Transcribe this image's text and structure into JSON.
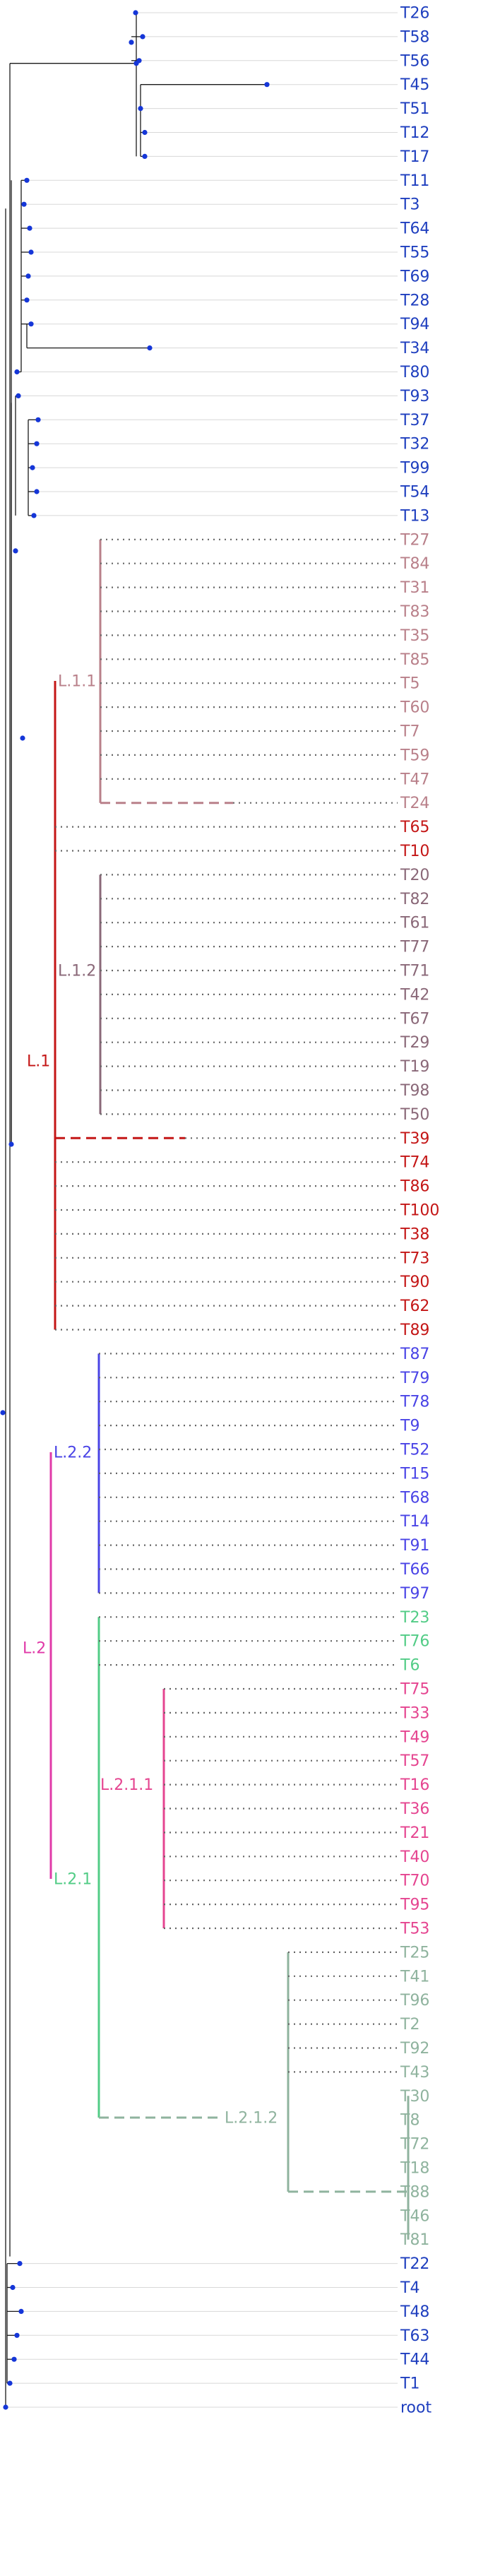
{
  "colors": {
    "top_tips": "#1f3fbf",
    "top_nodes": "#1536d8",
    "top_lines": "#1a1a1a",
    "guide": "#d8d8d8",
    "dotted": "#666666",
    "L1": "#c41616",
    "L1_1": "#b9808a",
    "L1_2": "#8a6878",
    "L2": "#e03aa8",
    "L2_2": "#4a44e6",
    "L2_1": "#52cc86",
    "L2_1_1": "#e54590",
    "L2_1_2": "#8fb39e",
    "default_tip": "#1f3fbf"
  },
  "clade_labels": {
    "L1": "L.1",
    "L1_1": "L.1.1",
    "L1_2": "L.1.2",
    "L2": "L.2",
    "L2_1": "L.2.1",
    "L2_2": "L.2.2",
    "L2_1_1": "L.2.1.1",
    "L2_1_2": "L.2.1.2"
  },
  "tips": [
    {
      "label": "T26",
      "clade": "top"
    },
    {
      "label": "T58",
      "clade": "top"
    },
    {
      "label": "T56",
      "clade": "top"
    },
    {
      "label": "T45",
      "clade": "top"
    },
    {
      "label": "T51",
      "clade": "top"
    },
    {
      "label": "T12",
      "clade": "top"
    },
    {
      "label": "T17",
      "clade": "top"
    },
    {
      "label": "T11",
      "clade": "top"
    },
    {
      "label": "T3",
      "clade": "top"
    },
    {
      "label": "T64",
      "clade": "top"
    },
    {
      "label": "T55",
      "clade": "top"
    },
    {
      "label": "T69",
      "clade": "top"
    },
    {
      "label": "T28",
      "clade": "top"
    },
    {
      "label": "T94",
      "clade": "top"
    },
    {
      "label": "T34",
      "clade": "top"
    },
    {
      "label": "T80",
      "clade": "top"
    },
    {
      "label": "T93",
      "clade": "top"
    },
    {
      "label": "T37",
      "clade": "top"
    },
    {
      "label": "T32",
      "clade": "top"
    },
    {
      "label": "T99",
      "clade": "top"
    },
    {
      "label": "T54",
      "clade": "top"
    },
    {
      "label": "T13",
      "clade": "top"
    },
    {
      "label": "T27",
      "clade": "L1_1"
    },
    {
      "label": "T84",
      "clade": "L1_1"
    },
    {
      "label": "T31",
      "clade": "L1_1"
    },
    {
      "label": "T83",
      "clade": "L1_1"
    },
    {
      "label": "T35",
      "clade": "L1_1"
    },
    {
      "label": "T85",
      "clade": "L1_1"
    },
    {
      "label": "T5",
      "clade": "L1_1"
    },
    {
      "label": "T60",
      "clade": "L1_1"
    },
    {
      "label": "T7",
      "clade": "L1_1"
    },
    {
      "label": "T59",
      "clade": "L1_1"
    },
    {
      "label": "T47",
      "clade": "L1_1"
    },
    {
      "label": "T24",
      "clade": "L1_1"
    },
    {
      "label": "T65",
      "clade": "L1"
    },
    {
      "label": "T10",
      "clade": "L1"
    },
    {
      "label": "T20",
      "clade": "L1_2"
    },
    {
      "label": "T82",
      "clade": "L1_2"
    },
    {
      "label": "T61",
      "clade": "L1_2"
    },
    {
      "label": "T77",
      "clade": "L1_2"
    },
    {
      "label": "T71",
      "clade": "L1_2"
    },
    {
      "label": "T42",
      "clade": "L1_2"
    },
    {
      "label": "T67",
      "clade": "L1_2"
    },
    {
      "label": "T29",
      "clade": "L1_2"
    },
    {
      "label": "T19",
      "clade": "L1_2"
    },
    {
      "label": "T98",
      "clade": "L1_2"
    },
    {
      "label": "T50",
      "clade": "L1_2"
    },
    {
      "label": "T39",
      "clade": "L1"
    },
    {
      "label": "T74",
      "clade": "L1"
    },
    {
      "label": "T86",
      "clade": "L1"
    },
    {
      "label": "T100",
      "clade": "L1"
    },
    {
      "label": "T38",
      "clade": "L1"
    },
    {
      "label": "T73",
      "clade": "L1"
    },
    {
      "label": "T90",
      "clade": "L1"
    },
    {
      "label": "T62",
      "clade": "L1"
    },
    {
      "label": "T89",
      "clade": "L1"
    },
    {
      "label": "T87",
      "clade": "L2_2"
    },
    {
      "label": "T79",
      "clade": "L2_2"
    },
    {
      "label": "T78",
      "clade": "L2_2"
    },
    {
      "label": "T9",
      "clade": "L2_2"
    },
    {
      "label": "T52",
      "clade": "L2_2"
    },
    {
      "label": "T15",
      "clade": "L2_2"
    },
    {
      "label": "T68",
      "clade": "L2_2"
    },
    {
      "label": "T14",
      "clade": "L2_2"
    },
    {
      "label": "T91",
      "clade": "L2_2"
    },
    {
      "label": "T66",
      "clade": "L2_2"
    },
    {
      "label": "T97",
      "clade": "L2_2"
    },
    {
      "label": "T23",
      "clade": "L2_1"
    },
    {
      "label": "T76",
      "clade": "L2_1"
    },
    {
      "label": "T6",
      "clade": "L2_1"
    },
    {
      "label": "T75",
      "clade": "L2_1_1"
    },
    {
      "label": "T33",
      "clade": "L2_1_1"
    },
    {
      "label": "T49",
      "clade": "L2_1_1"
    },
    {
      "label": "T57",
      "clade": "L2_1_1"
    },
    {
      "label": "T16",
      "clade": "L2_1_1"
    },
    {
      "label": "T36",
      "clade": "L2_1_1"
    },
    {
      "label": "T21",
      "clade": "L2_1_1"
    },
    {
      "label": "T40",
      "clade": "L2_1_1"
    },
    {
      "label": "T70",
      "clade": "L2_1_1"
    },
    {
      "label": "T95",
      "clade": "L2_1_1"
    },
    {
      "label": "T53",
      "clade": "L2_1_1"
    },
    {
      "label": "T25",
      "clade": "L2_1_2"
    },
    {
      "label": "T41",
      "clade": "L2_1_2"
    },
    {
      "label": "T96",
      "clade": "L2_1_2"
    },
    {
      "label": "T2",
      "clade": "L2_1_2"
    },
    {
      "label": "T92",
      "clade": "L2_1_2"
    },
    {
      "label": "T43",
      "clade": "L2_1_2"
    },
    {
      "label": "T30",
      "clade": "L2_1_2"
    },
    {
      "label": "T8",
      "clade": "L2_1_2"
    },
    {
      "label": "T72",
      "clade": "L2_1_2"
    },
    {
      "label": "T18",
      "clade": "L2_1_2"
    },
    {
      "label": "T88",
      "clade": "L2_1_2"
    },
    {
      "label": "T46",
      "clade": "L2_1_2"
    },
    {
      "label": "T81",
      "clade": "L2_1_2"
    },
    {
      "label": "T22",
      "clade": "top"
    },
    {
      "label": "T4",
      "clade": "top"
    },
    {
      "label": "T48",
      "clade": "top"
    },
    {
      "label": "T63",
      "clade": "top"
    },
    {
      "label": "T44",
      "clade": "top"
    },
    {
      "label": "T1",
      "clade": "top"
    },
    {
      "label": "root",
      "clade": "top"
    }
  ]
}
